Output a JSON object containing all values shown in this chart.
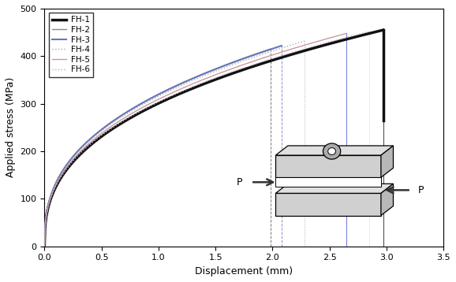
{
  "xlabel": "Displacement (mm)",
  "ylabel": "Applied stress (MPa)",
  "xlim": [
    0,
    3.5
  ],
  "ylim": [
    0,
    500
  ],
  "xticks": [
    0,
    0.5,
    1,
    1.5,
    2,
    2.5,
    3,
    3.5
  ],
  "yticks": [
    0,
    100,
    200,
    300,
    400,
    500
  ],
  "curve_params": [
    {
      "name": "FH-1",
      "color": "#111111",
      "lw": 2.5,
      "ls": "solid",
      "peak_x": 2.97,
      "peak_y": 455,
      "drop_y": 265,
      "vline_color": "#111111",
      "vline_ls": "solid",
      "k": 4.2
    },
    {
      "name": "FH-2",
      "color": "#888888",
      "lw": 1.0,
      "ls": "solid",
      "peak_x": 1.98,
      "peak_y": 415,
      "drop_y": null,
      "vline_color": "#555555",
      "vline_ls": "dashed",
      "k": 5.5
    },
    {
      "name": "FH-3",
      "color": "#6677bb",
      "lw": 1.5,
      "ls": "solid",
      "peak_x": 2.08,
      "peak_y": 422,
      "drop_y": null,
      "vline_color": "#6677bb",
      "vline_ls": "dashed",
      "k": 5.3
    },
    {
      "name": "FH-4",
      "color": "#aaaaaa",
      "lw": 1.0,
      "ls": "dotted",
      "peak_x": 2.28,
      "peak_y": 432,
      "drop_y": null,
      "vline_color": "#999999",
      "vline_ls": "dotted",
      "k": 5.0
    },
    {
      "name": "FH-5",
      "color": "#cc9999",
      "lw": 1.0,
      "ls": "solid",
      "peak_x": 2.65,
      "peak_y": 448,
      "drop_y": null,
      "vline_color": "#4455cc",
      "vline_ls": "solid",
      "k": 4.6
    },
    {
      "name": "FH-6",
      "color": "#aaaacc",
      "lw": 1.0,
      "ls": "dotted",
      "peak_x": 2.85,
      "peak_y": 452,
      "drop_y": null,
      "vline_color": "#bbbbbb",
      "vline_ls": "dotted",
      "k": 4.4
    }
  ],
  "background_color": "#ffffff"
}
